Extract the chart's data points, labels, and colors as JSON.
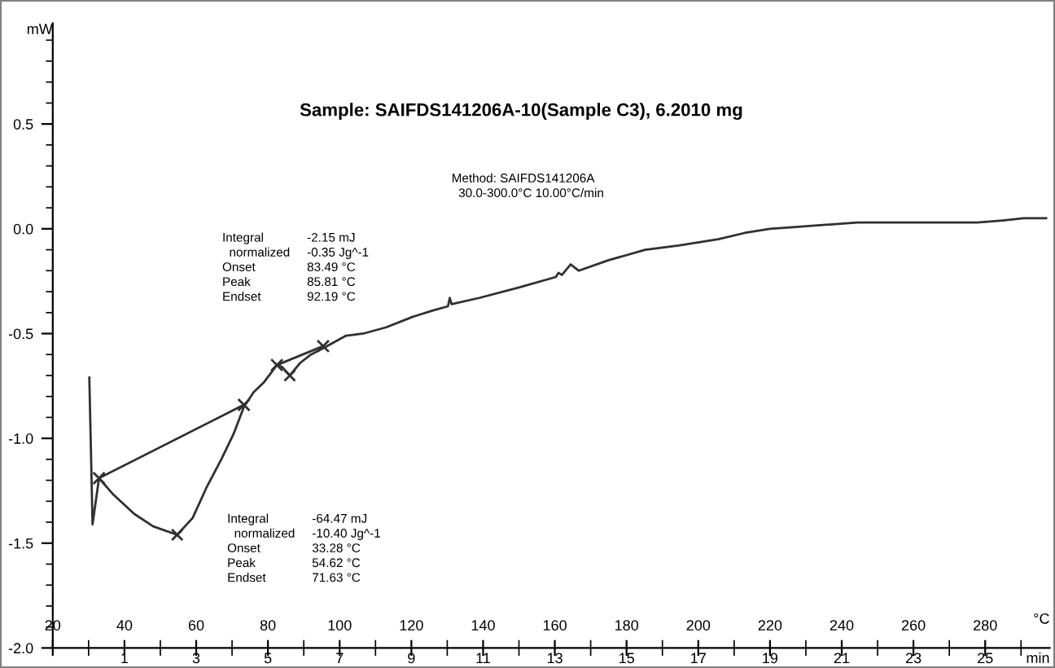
{
  "chart_data": {
    "type": "line",
    "title": "Sample: SAIFDS141206A-10(Sample C3), 6.2010 mg",
    "xlabel": "°C",
    "x2label": "min",
    "ylabel": "mW",
    "xlim": [
      20,
      298
    ],
    "xticks": [
      20,
      40,
      60,
      80,
      100,
      120,
      140,
      160,
      180,
      200,
      220,
      240,
      260,
      280
    ],
    "x2lim": [
      -1,
      26.8
    ],
    "x2ticks": [
      1,
      3,
      5,
      7,
      9,
      11,
      13,
      15,
      17,
      19,
      21,
      23,
      25
    ],
    "ylim": [
      -2.0,
      0.98
    ],
    "yticks": [
      {
        "value": -2,
        "label": "-2.0"
      },
      -1.5,
      {
        "value": -1,
        "label": "-1.0"
      },
      -0.5,
      {
        "value": 0,
        "label": "0.0"
      },
      0.5
    ],
    "line_style": "solid",
    "series": [
      {
        "color": "#303030",
        "x": [
          30.2,
          31.1,
          32.9,
          37.0,
          42.7,
          48.0,
          54.7,
          59.0,
          63.0,
          67.0,
          70.4,
          73.3,
          76.0,
          79.0,
          82.5,
          84.0,
          86.1,
          89.0,
          92.0,
          95.4,
          101.8,
          106.6,
          113.0,
          120.4,
          126.0,
          130.2,
          130.7,
          131.2,
          138.9,
          150.0,
          160.3,
          161.0,
          162.0,
          164.4,
          166.7,
          175.0,
          185.2,
          194.5,
          205.6,
          212.9,
          220.0,
          228.0,
          244.4,
          250.0,
          260.0,
          268.5,
          277.8,
          285.0,
          290.7,
          297.0
        ],
        "values": [
          -0.71,
          -1.41,
          -1.19,
          -1.27,
          -1.36,
          -1.42,
          -1.46,
          -1.38,
          -1.23,
          -1.1,
          -0.98,
          -0.85,
          -0.78,
          -0.73,
          -0.65,
          -0.66,
          -0.7,
          -0.64,
          -0.6,
          -0.57,
          -0.51,
          -0.5,
          -0.47,
          -0.42,
          -0.39,
          -0.37,
          -0.33,
          -0.36,
          -0.33,
          -0.28,
          -0.23,
          -0.21,
          -0.22,
          -0.17,
          -0.2,
          -0.15,
          -0.1,
          -0.08,
          -0.05,
          -0.02,
          0.0,
          0.01,
          0.03,
          0.03,
          0.03,
          0.03,
          0.03,
          0.04,
          0.05,
          0.05
        ]
      },
      {
        "color": "#303030",
        "x": [
          32.9,
          73.3
        ],
        "values": [
          -1.19,
          -0.84
        ],
        "marker": "cross"
      },
      {
        "color": "#303030",
        "x": [
          82.5,
          95.4
        ],
        "values": [
          -0.65,
          -0.56
        ],
        "marker": "cross"
      },
      {
        "color": "#303030",
        "type": "scatter",
        "x": [
          54.7,
          86.1
        ],
        "values": [
          -1.46,
          -0.7
        ],
        "marker": "cross"
      }
    ],
    "annotations": [
      "Method: SAIFDS141206A\n  30.0-300.0°C 10.00°C/min",
      "Integral\n  normalized\nOnset\nPeak\nEndset",
      "-2.15 mJ\n-0.35 Jg^-1\n83.49 °C\n85.81 °C\n92.19 °C",
      "Integral\n  normalized\nOnset\nPeak\nEndset",
      "-64.47 mJ\n-10.40 Jg^-1\n33.28 °C\n54.62 °C\n71.63 °C"
    ]
  }
}
